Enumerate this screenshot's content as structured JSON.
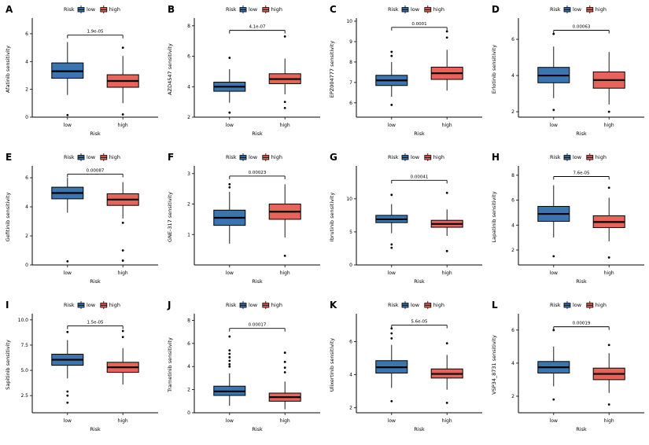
{
  "figure": {
    "background": "#ffffff",
    "legend": {
      "title": "Risk",
      "items": [
        {
          "label": "low",
          "color": "#3b75af"
        },
        {
          "label": "high",
          "color": "#e8635a"
        }
      ]
    },
    "x_axis_label": "Risk",
    "x_categories": [
      "low",
      "high"
    ]
  },
  "chart_data": [
    {
      "type": "box",
      "panel": "A",
      "ylabel": "Afatinib sensitivity",
      "pvalue": "1.9e-05",
      "ylim": [
        0,
        6.9
      ],
      "yticks": [
        "0",
        "2",
        "4",
        "6"
      ],
      "bracket_y": 5.9,
      "groups": [
        {
          "name": "low",
          "whisker_low": 1.6,
          "q1": 2.8,
          "median": 3.3,
          "q3": 3.9,
          "whisker_high": 5.4,
          "outliers": [
            0.15
          ]
        },
        {
          "name": "high",
          "whisker_low": 1.0,
          "q1": 2.15,
          "median": 2.6,
          "q3": 3.05,
          "whisker_high": 4.4,
          "outliers": [
            0.2,
            5.0
          ]
        }
      ]
    },
    {
      "type": "box",
      "panel": "B",
      "ylabel": "AZD4547 sensitivity",
      "pvalue": "4.1e-07",
      "ylim": [
        2,
        8.3
      ],
      "yticks": [
        "2",
        "4",
        "6",
        "8"
      ],
      "bracket_y": 7.7,
      "groups": [
        {
          "name": "low",
          "whisker_low": 2.95,
          "q1": 3.7,
          "median": 4.0,
          "q3": 4.3,
          "whisker_high": 5.15,
          "outliers": [
            2.3,
            5.9
          ]
        },
        {
          "name": "high",
          "whisker_low": 3.5,
          "q1": 4.2,
          "median": 4.5,
          "q3": 4.85,
          "whisker_high": 5.85,
          "outliers": [
            2.6,
            3.0,
            7.3
          ]
        }
      ]
    },
    {
      "type": "box",
      "panel": "C",
      "ylabel": "EPZ004777 sensitivity",
      "pvalue": "0.0001",
      "ylim": [
        5.3,
        10
      ],
      "yticks": [
        "6",
        "7",
        "8",
        "9",
        "10"
      ],
      "bracket_y": 9.7,
      "groups": [
        {
          "name": "low",
          "whisker_low": 6.3,
          "q1": 6.85,
          "median": 7.1,
          "q3": 7.35,
          "whisker_high": 8.0,
          "outliers": [
            5.9,
            8.3,
            8.5
          ]
        },
        {
          "name": "high",
          "whisker_low": 6.6,
          "q1": 7.15,
          "median": 7.45,
          "q3": 7.75,
          "whisker_high": 8.6,
          "outliers": [
            9.2,
            9.5
          ]
        }
      ]
    },
    {
      "type": "box",
      "panel": "D",
      "ylabel": "Erlotinib sensitivity",
      "pvalue": "0.00063",
      "ylim": [
        1.7,
        7.0
      ],
      "yticks": [
        "2",
        "4",
        "6"
      ],
      "bracket_y": 6.5,
      "groups": [
        {
          "name": "low",
          "whisker_low": 2.75,
          "q1": 3.6,
          "median": 4.0,
          "q3": 4.45,
          "whisker_high": 5.6,
          "outliers": [
            2.1,
            6.3
          ]
        },
        {
          "name": "high",
          "whisker_low": 2.4,
          "q1": 3.3,
          "median": 3.75,
          "q3": 4.2,
          "whisker_high": 5.3,
          "outliers": [
            2.0
          ]
        }
      ]
    },
    {
      "type": "box",
      "panel": "E",
      "ylabel": "Gefitinib sensitivity",
      "pvalue": "0.00087",
      "ylim": [
        0,
        6.6
      ],
      "yticks": [
        "0",
        "2",
        "4",
        "6"
      ],
      "bracket_y": 6.25,
      "groups": [
        {
          "name": "low",
          "whisker_low": 3.6,
          "q1": 4.55,
          "median": 4.95,
          "q3": 5.35,
          "whisker_high": 6.0,
          "outliers": [
            0.25
          ]
        },
        {
          "name": "high",
          "whisker_low": 3.2,
          "q1": 4.1,
          "median": 4.5,
          "q3": 4.9,
          "whisker_high": 5.7,
          "outliers": [
            0.3,
            1.0,
            2.9
          ]
        }
      ]
    },
    {
      "type": "box",
      "panel": "F",
      "ylabel": "GNE-317 sensitivity",
      "pvalue": "0.00023",
      "ylim": [
        0,
        3.15
      ],
      "yticks": [
        "1",
        "2",
        "3"
      ],
      "bracket_y": 2.92,
      "groups": [
        {
          "name": "low",
          "whisker_low": 0.7,
          "q1": 1.3,
          "median": 1.55,
          "q3": 1.8,
          "whisker_high": 2.4,
          "outliers": [
            2.55,
            2.65
          ]
        },
        {
          "name": "high",
          "whisker_low": 0.9,
          "q1": 1.5,
          "median": 1.75,
          "q3": 2.0,
          "whisker_high": 2.65,
          "outliers": [
            0.3
          ]
        }
      ]
    },
    {
      "type": "box",
      "panel": "G",
      "ylabel": "Ibrutinib sensitivity",
      "pvalue": "0.00041",
      "ylim": [
        0,
        14.5
      ],
      "yticks": [
        "0",
        "5",
        "10"
      ],
      "bracket_y": 12.8,
      "groups": [
        {
          "name": "low",
          "whisker_low": 4.8,
          "q1": 6.4,
          "median": 6.9,
          "q3": 7.5,
          "whisker_high": 9.2,
          "outliers": [
            2.6,
            3.1,
            10.6
          ]
        },
        {
          "name": "high",
          "whisker_low": 4.4,
          "q1": 5.7,
          "median": 6.2,
          "q3": 6.75,
          "whisker_high": 8.4,
          "outliers": [
            2.1,
            10.9
          ]
        }
      ]
    },
    {
      "type": "box",
      "panel": "H",
      "ylabel": "Lapatinib sensitivity",
      "pvalue": "7.6e-05",
      "ylim": [
        0.8,
        8.5
      ],
      "yticks": [
        "2",
        "4",
        "6",
        "8"
      ],
      "bracket_y": 7.9,
      "groups": [
        {
          "name": "low",
          "whisker_low": 3.0,
          "q1": 4.3,
          "median": 4.9,
          "q3": 5.5,
          "whisker_high": 7.2,
          "outliers": [
            1.5
          ]
        },
        {
          "name": "high",
          "whisker_low": 2.7,
          "q1": 3.8,
          "median": 4.25,
          "q3": 4.75,
          "whisker_high": 6.2,
          "outliers": [
            1.4,
            7.0
          ]
        }
      ]
    },
    {
      "type": "box",
      "panel": "I",
      "ylabel": "Sapitinib sensitivity",
      "pvalue": "1.5e-05",
      "ylim": [
        0.8,
        10.3
      ],
      "yticks": [
        "2.5",
        "5.0",
        "7.5",
        "10.0"
      ],
      "bracket_y": 9.4,
      "groups": [
        {
          "name": "low",
          "whisker_low": 4.2,
          "q1": 5.5,
          "median": 6.05,
          "q3": 6.6,
          "whisker_high": 8.0,
          "outliers": [
            1.8,
            2.5,
            2.9,
            8.8
          ]
        },
        {
          "name": "high",
          "whisker_low": 3.6,
          "q1": 4.8,
          "median": 5.3,
          "q3": 5.8,
          "whisker_high": 7.2,
          "outliers": [
            8.3,
            8.9
          ]
        }
      ]
    },
    {
      "type": "box",
      "panel": "J",
      "ylabel": "Trametinib sensitivity",
      "pvalue": "0.00017",
      "ylim": [
        0,
        8.3
      ],
      "yticks": [
        "0",
        "2",
        "4",
        "6",
        "8"
      ],
      "bracket_y": 7.3,
      "groups": [
        {
          "name": "low",
          "whisker_low": 0.6,
          "q1": 1.5,
          "median": 1.85,
          "q3": 2.3,
          "whisker_high": 3.4,
          "outliers": [
            4.0,
            4.2,
            4.5,
            4.8,
            5.1,
            5.4,
            6.6
          ]
        },
        {
          "name": "high",
          "whisker_low": 0.3,
          "q1": 1.0,
          "median": 1.35,
          "q3": 1.7,
          "whisker_high": 2.7,
          "outliers": [
            3.5,
            3.9,
            4.4,
            5.2
          ]
        }
      ]
    },
    {
      "type": "box",
      "panel": "K",
      "ylabel": "Ulixertinib sensitivity",
      "pvalue": "5.6e-05",
      "ylim": [
        1.7,
        7.5
      ],
      "yticks": [
        "2",
        "4",
        "6"
      ],
      "bracket_y": 7.0,
      "groups": [
        {
          "name": "low",
          "whisker_low": 3.2,
          "q1": 4.1,
          "median": 4.45,
          "q3": 4.85,
          "whisker_high": 5.8,
          "outliers": [
            2.4,
            6.2,
            6.5,
            6.8
          ]
        },
        {
          "name": "high",
          "whisker_low": 3.1,
          "q1": 3.8,
          "median": 4.05,
          "q3": 4.35,
          "whisker_high": 5.2,
          "outliers": [
            2.3,
            5.9
          ]
        }
      ]
    },
    {
      "type": "box",
      "panel": "L",
      "ylabel": "VSP34_8731 sensitivity",
      "pvalue": "0.00019",
      "ylim": [
        1.0,
        6.8
      ],
      "yticks": [
        "2",
        "4",
        "6"
      ],
      "bracket_y": 6.2,
      "groups": [
        {
          "name": "low",
          "whisker_low": 2.6,
          "q1": 3.4,
          "median": 3.75,
          "q3": 4.1,
          "whisker_high": 5.0,
          "outliers": [
            1.8,
            6.0
          ]
        },
        {
          "name": "high",
          "whisker_low": 2.2,
          "q1": 3.0,
          "median": 3.35,
          "q3": 3.7,
          "whisker_high": 4.6,
          "outliers": [
            1.5,
            5.1
          ]
        }
      ]
    }
  ]
}
